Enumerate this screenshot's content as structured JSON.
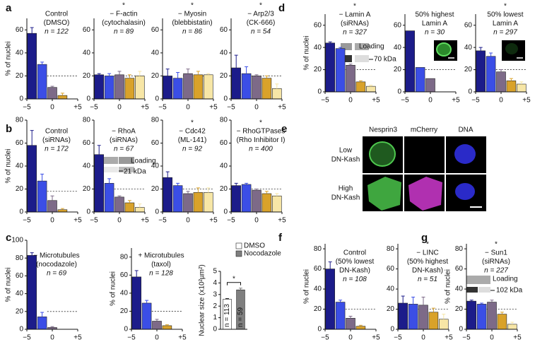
{
  "panel_labels": [
    "a",
    "b",
    "c",
    "d",
    "e",
    "f",
    "g"
  ],
  "chart_data": [
    {
      "type": "bar",
      "title": [
        "Control",
        "(DMSO)"
      ],
      "n_label": "n = 122",
      "x": [
        -4,
        -2,
        0,
        2,
        4
      ],
      "values": [
        57,
        30,
        10,
        3,
        0
      ],
      "errors": [
        5,
        2,
        1,
        2,
        null
      ],
      "colors": [
        "#1c1c8a",
        "#3b4ee6",
        "#7d6a88",
        "#d9a22a",
        "#f7e6a6"
      ],
      "xlim": [
        -5,
        5
      ],
      "xticks": [
        {
          "value": -5,
          "label": "−5"
        },
        0,
        {
          "value": 5,
          "label": "+5"
        }
      ],
      "ylim": [
        0,
        70
      ],
      "yticks": [
        0,
        20,
        40,
        60
      ],
      "ylabel": "% of nuclei",
      "reference_line": 20
    },
    {
      "type": "bar",
      "significance": "*",
      "title": [
        "− F-actin",
        "(cytochalasin)"
      ],
      "n_label": "n = 89",
      "x": [
        -4,
        -2,
        0,
        2,
        4
      ],
      "values": [
        21,
        20,
        21,
        18,
        20
      ],
      "errors": [
        1,
        2,
        3,
        3,
        4
      ],
      "colors": [
        "#1c1c8a",
        "#3b4ee6",
        "#7d6a88",
        "#d9a22a",
        "#f7e6a6"
      ],
      "xlim": [
        -5,
        5
      ],
      "xticks": [
        {
          "value": -5,
          "label": "−5"
        },
        0,
        {
          "value": 5,
          "label": "+5"
        }
      ],
      "ylim": [
        0,
        70
      ],
      "yticks": [
        0,
        20,
        40,
        60
      ],
      "reference_line": 20
    },
    {
      "type": "bar",
      "significance": "*",
      "title": [
        "− Myosin",
        "(blebbistatin)"
      ],
      "n_label": "n = 86",
      "x": [
        -4,
        -2,
        0,
        2,
        4
      ],
      "values": [
        20,
        18,
        22,
        21,
        21
      ],
      "errors": [
        6,
        5,
        4,
        3,
        1
      ],
      "colors": [
        "#1c1c8a",
        "#3b4ee6",
        "#7d6a88",
        "#d9a22a",
        "#f7e6a6"
      ],
      "xlim": [
        -5,
        5
      ],
      "xticks": [
        {
          "value": -5,
          "label": "−5"
        },
        0,
        {
          "value": 5,
          "label": "+5"
        }
      ],
      "ylim": [
        0,
        70
      ],
      "yticks": [
        0,
        20,
        40,
        60
      ],
      "reference_line": 20
    },
    {
      "type": "bar",
      "significance": "*",
      "title": [
        "− Arp2/3",
        "(CK-666)"
      ],
      "n_label": "n = 54",
      "x": [
        -4,
        -2,
        0,
        2,
        4
      ],
      "values": [
        27,
        22,
        20,
        18,
        9
      ],
      "errors": [
        11,
        6,
        1,
        2,
        4
      ],
      "colors": [
        "#1c1c8a",
        "#3b4ee6",
        "#7d6a88",
        "#d9a22a",
        "#f7e6a6"
      ],
      "xlim": [
        -5,
        5
      ],
      "xticks": [
        {
          "value": -5,
          "label": "−5"
        },
        0,
        {
          "value": 5,
          "label": "+5"
        }
      ],
      "ylim": [
        0,
        70
      ],
      "yticks": [
        0,
        20,
        40,
        60
      ],
      "reference_line": 20
    },
    {
      "type": "bar",
      "title": [
        "Control",
        "(siRNAs)"
      ],
      "n_label": "n = 172",
      "x": [
        -4,
        -2,
        0,
        2,
        4
      ],
      "values": [
        58,
        27,
        10,
        2,
        0
      ],
      "errors": [
        13,
        6,
        4,
        1,
        null
      ],
      "colors": [
        "#1c1c8a",
        "#3b4ee6",
        "#7d6a88",
        "#d9a22a",
        "#f7e6a6"
      ],
      "xlim": [
        -5,
        5
      ],
      "xticks": [
        {
          "value": -5,
          "label": "−5"
        },
        0,
        {
          "value": 5,
          "label": "+5"
        }
      ],
      "ylim": [
        0,
        80
      ],
      "yticks": [
        0,
        20,
        40,
        60,
        80
      ],
      "ylabel": "% of nuclei",
      "reference_line": 18
    },
    {
      "type": "bar",
      "title": [
        "− RhoA",
        "(siRNAs)"
      ],
      "n_label": "n = 67",
      "x": [
        -4,
        -2,
        0,
        2,
        4
      ],
      "values": [
        50,
        25,
        13,
        8,
        4
      ],
      "errors": [
        8,
        4,
        1,
        2,
        3
      ],
      "colors": [
        "#1c1c8a",
        "#3b4ee6",
        "#7d6a88",
        "#d9a22a",
        "#f7e6a6"
      ],
      "xlim": [
        -5,
        5
      ],
      "xticks": [
        {
          "value": -5,
          "label": "−5"
        },
        0,
        {
          "value": 5,
          "label": "+5"
        }
      ],
      "ylim": [
        0,
        80
      ],
      "yticks": [
        0,
        20,
        40,
        60,
        80
      ],
      "reference_line": 20,
      "inset": {
        "label": "Loading",
        "size": "21 kDa"
      }
    },
    {
      "type": "bar",
      "significance": "*",
      "title": [
        "− Cdc42",
        "(ML-141)"
      ],
      "n_label": "n = 92",
      "x": [
        -4,
        -2,
        0,
        2,
        4
      ],
      "values": [
        30,
        23,
        16,
        17,
        17
      ],
      "errors": [
        5,
        2,
        2,
        4,
        4
      ],
      "colors": [
        "#1c1c8a",
        "#3b4ee6",
        "#7d6a88",
        "#d9a22a",
        "#f7e6a6"
      ],
      "xlim": [
        -5,
        5
      ],
      "xticks": [
        {
          "value": -5,
          "label": "−5"
        },
        0,
        {
          "value": 5,
          "label": "+5"
        }
      ],
      "ylim": [
        0,
        80
      ],
      "yticks": [
        0,
        20,
        40,
        60,
        80
      ],
      "reference_line": 20
    },
    {
      "type": "bar",
      "significance": "*",
      "title": [
        "− RhoGTPases",
        "(Rho Inhibitor I)"
      ],
      "n_label": "n = 400",
      "x": [
        -4,
        -2,
        0,
        2,
        4
      ],
      "values": [
        23,
        24,
        19,
        16,
        14
      ],
      "errors": [
        2,
        1,
        1,
        2,
        2
      ],
      "colors": [
        "#1c1c8a",
        "#3b4ee6",
        "#7d6a88",
        "#d9a22a",
        "#f7e6a6"
      ],
      "xlim": [
        -5,
        5
      ],
      "xticks": [
        {
          "value": -5,
          "label": "−5"
        },
        0,
        {
          "value": 5,
          "label": "+5"
        }
      ],
      "ylim": [
        0,
        80
      ],
      "yticks": [
        0,
        20,
        40,
        60,
        80
      ],
      "reference_line": 20
    },
    {
      "type": "bar",
      "title": [
        "− Microtubules",
        "(nocodazole)"
      ],
      "n_label": "n = 69",
      "x": [
        -4,
        -2,
        0,
        2,
        4
      ],
      "values": [
        83,
        14,
        2,
        0,
        0
      ],
      "errors": [
        3,
        5,
        1,
        null,
        null
      ],
      "colors": [
        "#1c1c8a",
        "#3b4ee6",
        "#7d6a88",
        "#d9a22a",
        "#f7e6a6"
      ],
      "xlim": [
        -5,
        5
      ],
      "xticks": [
        {
          "value": -5,
          "label": "−5"
        },
        0,
        {
          "value": 5,
          "label": "+5"
        }
      ],
      "ylim": [
        0,
        100
      ],
      "yticks": [
        0,
        20,
        40,
        60,
        80,
        100
      ],
      "ylabel": "% of nuclei",
      "reference_line": 20
    },
    {
      "type": "bar",
      "title": [
        "+ Microtubules",
        "(taxol)"
      ],
      "n_label": "n = 128",
      "x": [
        -4,
        -2,
        0,
        2,
        4
      ],
      "values": [
        58,
        29,
        9,
        4,
        0
      ],
      "errors": [
        7,
        3,
        2,
        1,
        null
      ],
      "colors": [
        "#1c1c8a",
        "#3b4ee6",
        "#7d6a88",
        "#d9a22a",
        "#f7e6a6"
      ],
      "xlim": [
        -5,
        5
      ],
      "xticks": [
        {
          "value": -5,
          "label": "−5"
        },
        0,
        {
          "value": 5,
          "label": "+5"
        }
      ],
      "ylim": [
        0,
        90
      ],
      "yticks": [
        0,
        20,
        40,
        60,
        80
      ],
      "ylabel": "% of nuclei",
      "reference_line": 20
    },
    {
      "type": "bar",
      "significance": "*",
      "categories": [
        "DMSO",
        "Nocodazole"
      ],
      "values": [
        2.6,
        3.4
      ],
      "errors": [
        0.05,
        0.15
      ],
      "value_annotations": [
        "n = 113",
        "n = 59"
      ],
      "colors": [
        "#ffffff",
        "#7f7f7f"
      ],
      "ylim": [
        0,
        5
      ],
      "yticks": [
        0,
        1,
        2,
        3,
        4,
        5
      ],
      "ylabel": "Nuclear size (x10²µm²)"
    },
    {
      "type": "bar",
      "significance": "*",
      "title": [
        "− Lamin A",
        "(siRNAs)"
      ],
      "n_label": "n = 327",
      "x": [
        -4,
        -2,
        0,
        2,
        4
      ],
      "values": [
        44,
        39,
        24,
        9,
        5
      ],
      "errors": [
        1,
        1,
        1,
        1,
        1
      ],
      "colors": [
        "#1c1c8a",
        "#3b4ee6",
        "#7d6a88",
        "#d9a22a",
        "#f7e6a6"
      ],
      "xlim": [
        -5,
        5
      ],
      "xticks": [
        {
          "value": -5,
          "label": "−5"
        },
        0,
        {
          "value": 5,
          "label": "+5"
        }
      ],
      "ylim": [
        0,
        70
      ],
      "yticks": [
        0,
        20,
        40,
        60
      ],
      "ylabel": "% of nuclei",
      "reference_line": 20,
      "inset": {
        "label": "Loading",
        "size": "70 kDa"
      }
    },
    {
      "type": "bar",
      "title": [
        "50% highest",
        "Lamin A"
      ],
      "n_label": "n = 30",
      "x": [
        -4,
        -2,
        0,
        2,
        4
      ],
      "values": [
        55,
        22,
        12,
        0,
        0
      ],
      "errors": [
        null,
        null,
        null,
        null,
        null
      ],
      "colors": [
        "#1c1c8a",
        "#3b4ee6",
        "#7d6a88",
        "#d9a22a",
        "#f7e6a6"
      ],
      "xlim": [
        -5,
        5
      ],
      "xticks": [
        {
          "value": -5,
          "label": "−5"
        },
        0,
        {
          "value": 5,
          "label": "+5"
        }
      ],
      "ylim": [
        0,
        70
      ],
      "yticks": [
        0,
        20,
        40,
        60
      ],
      "reference_line": 20
    },
    {
      "type": "bar",
      "significance": "*",
      "title": [
        "50% lowest",
        "Lamin A"
      ],
      "n_label": "n = 297",
      "x": [
        -4,
        -2,
        0,
        2,
        4
      ],
      "values": [
        37,
        32,
        18,
        10,
        7
      ],
      "errors": [
        3,
        3,
        2,
        2,
        2
      ],
      "colors": [
        "#1c1c8a",
        "#3b4ee6",
        "#7d6a88",
        "#d9a22a",
        "#f7e6a6"
      ],
      "xlim": [
        -5,
        5
      ],
      "xticks": [
        {
          "value": -5,
          "label": "−5"
        },
        0,
        {
          "value": 5,
          "label": "+5"
        }
      ],
      "ylim": [
        0,
        70
      ],
      "yticks": [
        0,
        20,
        40,
        60
      ],
      "reference_line": 20
    },
    {
      "type": "bar",
      "title": [
        "Control",
        "(50% lowest",
        "DN-Kash)"
      ],
      "n_label": "n = 108",
      "x": [
        -4,
        -2,
        0,
        2,
        4
      ],
      "values": [
        60,
        27,
        11,
        3,
        0
      ],
      "errors": [
        7,
        2,
        2,
        1,
        null
      ],
      "colors": [
        "#1c1c8a",
        "#3b4ee6",
        "#7d6a88",
        "#d9a22a",
        "#f7e6a6"
      ],
      "xlim": [
        -5,
        5
      ],
      "xticks": [
        {
          "value": -5,
          "label": "−5"
        },
        0,
        {
          "value": 5,
          "label": "+5"
        }
      ],
      "ylim": [
        0,
        85
      ],
      "yticks": [
        0,
        20,
        40,
        60,
        80
      ],
      "ylabel": "% of nuclei",
      "reference_line": 20
    },
    {
      "type": "bar",
      "significance": "*",
      "title": [
        "− LINC",
        "(50% highest",
        "DN-Kash)"
      ],
      "n_label": "n = 51",
      "x": [
        -4,
        -2,
        0,
        2,
        4
      ],
      "values": [
        26,
        25,
        24,
        17,
        10
      ],
      "errors": [
        7,
        7,
        8,
        4,
        5
      ],
      "colors": [
        "#1c1c8a",
        "#3b4ee6",
        "#7d6a88",
        "#d9a22a",
        "#f7e6a6"
      ],
      "xlim": [
        -5,
        5
      ],
      "xticks": [
        {
          "value": -5,
          "label": "−5"
        },
        0,
        {
          "value": 5,
          "label": "+5"
        }
      ],
      "ylim": [
        0,
        85
      ],
      "yticks": [
        0,
        20,
        40,
        60,
        80
      ],
      "reference_line": 20
    },
    {
      "type": "bar",
      "significance": "*",
      "title": [
        "− Sun1",
        "(siRNAs)"
      ],
      "n_label": "n = 227",
      "x": [
        -4,
        -2,
        0,
        2,
        4
      ],
      "values": [
        28,
        25,
        27,
        15,
        5
      ],
      "errors": [
        1,
        1,
        2,
        2,
        2
      ],
      "colors": [
        "#1c1c8a",
        "#3b4ee6",
        "#7d6a88",
        "#d9a22a",
        "#f7e6a6"
      ],
      "xlim": [
        -5,
        5
      ],
      "xticks": [
        {
          "value": -5,
          "label": "−5"
        },
        0,
        {
          "value": 5,
          "label": "+5"
        }
      ],
      "ylim": [
        0,
        85
      ],
      "yticks": [
        0,
        20,
        40,
        60,
        80
      ],
      "ylabel": "% of nuclei",
      "reference_line": 20,
      "inset": {
        "label": "Loading",
        "size": "102 kDa"
      }
    }
  ],
  "panel_e": {
    "columns": [
      "Nesprin3",
      "mCherry",
      "DNA"
    ],
    "rows": [
      [
        "Low",
        "DN-Kash"
      ],
      [
        "High",
        "DN-Kash"
      ]
    ]
  }
}
